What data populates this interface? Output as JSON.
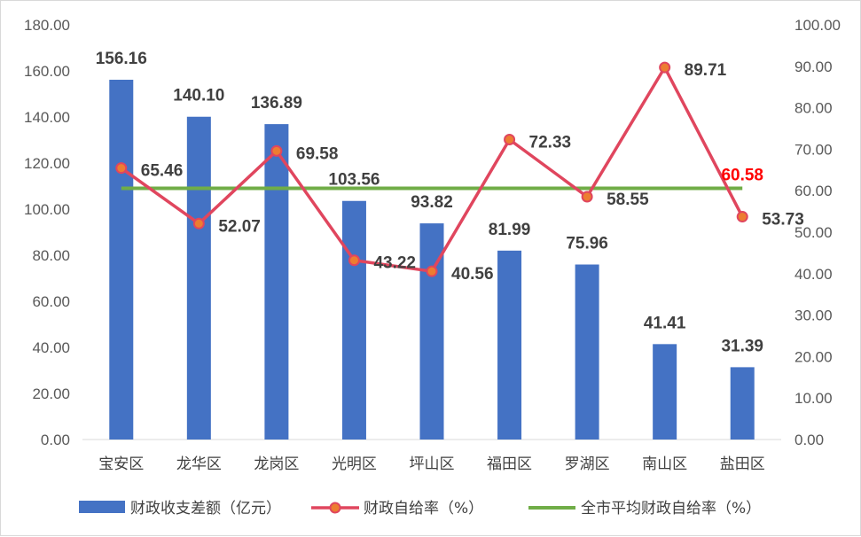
{
  "chart_data": {
    "type": "bar",
    "categories": [
      "宝安区",
      "龙华区",
      "龙岗区",
      "光明区",
      "坪山区",
      "福田区",
      "罗湖区",
      "南山区",
      "盐田区"
    ],
    "series": [
      {
        "name": "财政收支差额（亿元）",
        "type": "bar",
        "axis": "left",
        "color": "#4472C4",
        "values": [
          156.16,
          140.1,
          136.89,
          103.56,
          93.82,
          81.99,
          75.96,
          41.41,
          31.39
        ]
      },
      {
        "name": "财政自给率（%）",
        "type": "line",
        "axis": "right",
        "color": "#E0465E",
        "marker_color": "#ED7D31",
        "values": [
          65.46,
          52.07,
          69.58,
          43.22,
          40.56,
          72.33,
          58.55,
          89.71,
          53.73
        ]
      },
      {
        "name": "全市平均财政自给率（%）",
        "type": "line",
        "axis": "right",
        "color": "#70AD47",
        "value": 60.58,
        "label_color": "#FF0000"
      }
    ],
    "y_left": {
      "ylim": [
        0,
        180
      ],
      "ticks": [
        "0.00",
        "20.00",
        "40.00",
        "60.00",
        "80.00",
        "100.00",
        "120.00",
        "140.00",
        "160.00",
        "180.00"
      ]
    },
    "y_right": {
      "ylim": [
        0,
        100
      ],
      "ticks": [
        "0.00",
        "10.00",
        "20.00",
        "30.00",
        "40.00",
        "50.00",
        "60.00",
        "70.00",
        "80.00",
        "90.00",
        "100.00"
      ]
    },
    "bar_labels": [
      "156.16",
      "140.10",
      "136.89",
      "103.56",
      "93.82",
      "81.99",
      "75.96",
      "41.41",
      "31.39"
    ],
    "line_labels": [
      "65.46",
      "52.07",
      "69.58",
      "43.22",
      "40.56",
      "72.33",
      "58.55",
      "89.71",
      "53.73"
    ],
    "avg_label": "60.58",
    "grid": false,
    "legend_position": "bottom"
  }
}
